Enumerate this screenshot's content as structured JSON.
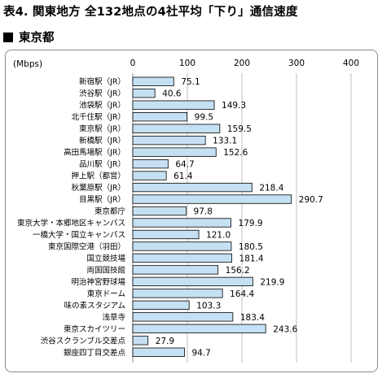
{
  "page_title": "表4. 関東地方 全132地点の4社平均「下り」通信速度",
  "section_title": "東京都",
  "colors": {
    "bar_fill": "#c5e0f2",
    "bar_stroke": "#000000",
    "grid": "#bfbfbf"
  },
  "chart_data": {
    "type": "bar",
    "orientation": "horizontal",
    "unit_label": "(Mbps)",
    "xlim": [
      0,
      400
    ],
    "ticks": [
      0,
      100,
      200,
      300,
      400
    ],
    "grid": true,
    "categories": [
      "新宿駅（JR）",
      "渋谷駅（JR）",
      "池袋駅（JR）",
      "北千住駅（JR）",
      "東京駅（JR）",
      "新橋駅（JR）",
      "高田馬場駅（JR）",
      "品川駅（JR）",
      "押上駅（都営）",
      "秋葉原駅（JR）",
      "目黒駅（JR）",
      "東京都庁",
      "東京大学・本郷地区キャンパス",
      "一橋大学・国立キャンパス",
      "東京国際空港（羽田）",
      "国立競技場",
      "両国国技館",
      "明治神宮野球場",
      "東京ドーム",
      "味の素スタジアム",
      "浅草寺",
      "東京スカイツリー",
      "渋谷スクランブル交差点",
      "銀座四丁目交差点"
    ],
    "values": [
      75.1,
      40.6,
      149.3,
      99.5,
      159.5,
      133.1,
      152.6,
      64.7,
      61.4,
      218.4,
      290.7,
      97.8,
      179.9,
      121.0,
      180.5,
      181.4,
      156.2,
      219.9,
      164.4,
      103.3,
      183.4,
      243.6,
      27.9,
      94.7
    ],
    "value_labels": [
      "75.1",
      "40.6",
      "149.3",
      "99.5",
      "159.5",
      "133.1",
      "152.6",
      "64.7",
      "61.4",
      "218.4",
      "290.7",
      "97.8",
      "179.9",
      "121.0",
      "180.5",
      "181.4",
      "156.2",
      "219.9",
      "164.4",
      "103.3",
      "183.4",
      "243.6",
      "27.9",
      "94.7"
    ]
  }
}
